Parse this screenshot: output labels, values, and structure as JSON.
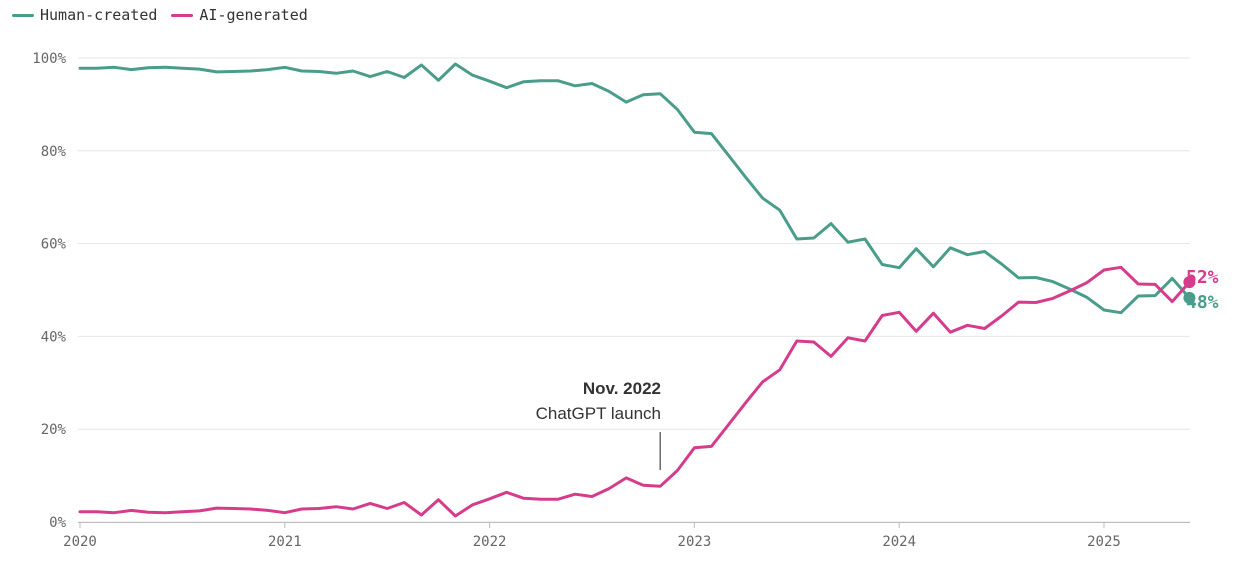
{
  "legend": {
    "human_label": "Human-created",
    "ai_label": "AI-generated"
  },
  "colors": {
    "human": "#4a9d8b",
    "ai": "#d63c8c",
    "grid": "#e6e6e6",
    "axis": "#bbbbbb"
  },
  "annotation": {
    "line1": "Nov. 2022",
    "line2": "ChatGPT launch",
    "x": 2022.833
  },
  "end_labels": {
    "ai": "52%",
    "human": "48%"
  },
  "chart_data": {
    "type": "line",
    "xlim": [
      2020,
      2025.42
    ],
    "ylim": [
      0,
      100
    ],
    "x_ticks": [
      {
        "value": 2020,
        "label": "2020"
      },
      {
        "value": 2021,
        "label": "2021"
      },
      {
        "value": 2022,
        "label": "2022"
      },
      {
        "value": 2023,
        "label": "2023"
      },
      {
        "value": 2024,
        "label": "2024"
      },
      {
        "value": 2025,
        "label": "2025"
      }
    ],
    "y_ticks": [
      {
        "value": 0,
        "label": "0%"
      },
      {
        "value": 20,
        "label": "20%"
      },
      {
        "value": 40,
        "label": "40%"
      },
      {
        "value": 60,
        "label": "60%"
      },
      {
        "value": 80,
        "label": "80%"
      },
      {
        "value": 100,
        "label": "100%"
      }
    ],
    "grid": "horizontal",
    "legend_position": "top-left",
    "series": [
      {
        "name": "Human-created",
        "color": "#4a9d8b",
        "points": [
          [
            2020.0,
            97.8
          ],
          [
            2020.083,
            97.8
          ],
          [
            2020.167,
            98.0
          ],
          [
            2020.25,
            97.5
          ],
          [
            2020.333,
            97.9
          ],
          [
            2020.417,
            98.0
          ],
          [
            2020.5,
            97.8
          ],
          [
            2020.583,
            97.6
          ],
          [
            2020.667,
            97.0
          ],
          [
            2020.75,
            97.1
          ],
          [
            2020.833,
            97.2
          ],
          [
            2020.917,
            97.5
          ],
          [
            2021.0,
            98.0
          ],
          [
            2021.083,
            97.2
          ],
          [
            2021.167,
            97.1
          ],
          [
            2021.25,
            96.7
          ],
          [
            2021.333,
            97.2
          ],
          [
            2021.417,
            96.0
          ],
          [
            2021.5,
            97.1
          ],
          [
            2021.583,
            95.8
          ],
          [
            2021.667,
            98.5
          ],
          [
            2021.75,
            95.2
          ],
          [
            2021.833,
            98.7
          ],
          [
            2021.917,
            96.3
          ],
          [
            2022.0,
            95.0
          ],
          [
            2022.083,
            93.6
          ],
          [
            2022.167,
            94.9
          ],
          [
            2022.25,
            95.1
          ],
          [
            2022.333,
            95.1
          ],
          [
            2022.417,
            94.0
          ],
          [
            2022.5,
            94.5
          ],
          [
            2022.583,
            92.8
          ],
          [
            2022.667,
            90.5
          ],
          [
            2022.75,
            92.1
          ],
          [
            2022.833,
            92.3
          ],
          [
            2022.917,
            88.9
          ],
          [
            2023.0,
            84.0
          ],
          [
            2023.083,
            83.7
          ],
          [
            2023.167,
            79.0
          ],
          [
            2023.25,
            74.3
          ],
          [
            2023.333,
            69.8
          ],
          [
            2023.417,
            67.2
          ],
          [
            2023.5,
            61.0
          ],
          [
            2023.583,
            61.2
          ],
          [
            2023.667,
            64.3
          ],
          [
            2023.75,
            60.3
          ],
          [
            2023.833,
            61.0
          ],
          [
            2023.917,
            55.5
          ],
          [
            2024.0,
            54.8
          ],
          [
            2024.083,
            58.9
          ],
          [
            2024.167,
            55.0
          ],
          [
            2024.25,
            59.1
          ],
          [
            2024.333,
            57.6
          ],
          [
            2024.417,
            58.3
          ],
          [
            2024.5,
            55.6
          ],
          [
            2024.583,
            52.6
          ],
          [
            2024.667,
            52.7
          ],
          [
            2024.75,
            51.8
          ],
          [
            2024.833,
            50.2
          ],
          [
            2024.917,
            48.4
          ],
          [
            2025.0,
            45.7
          ],
          [
            2025.083,
            45.1
          ],
          [
            2025.167,
            48.7
          ],
          [
            2025.25,
            48.8
          ],
          [
            2025.333,
            52.5
          ],
          [
            2025.417,
            48.3
          ]
        ]
      },
      {
        "name": "AI-generated",
        "color": "#d63c8c",
        "points": [
          [
            2020.0,
            2.2
          ],
          [
            2020.083,
            2.2
          ],
          [
            2020.167,
            2.0
          ],
          [
            2020.25,
            2.5
          ],
          [
            2020.333,
            2.1
          ],
          [
            2020.417,
            2.0
          ],
          [
            2020.5,
            2.2
          ],
          [
            2020.583,
            2.4
          ],
          [
            2020.667,
            3.0
          ],
          [
            2020.75,
            2.9
          ],
          [
            2020.833,
            2.8
          ],
          [
            2020.917,
            2.5
          ],
          [
            2021.0,
            2.0
          ],
          [
            2021.083,
            2.8
          ],
          [
            2021.167,
            2.9
          ],
          [
            2021.25,
            3.3
          ],
          [
            2021.333,
            2.8
          ],
          [
            2021.417,
            4.0
          ],
          [
            2021.5,
            2.9
          ],
          [
            2021.583,
            4.2
          ],
          [
            2021.667,
            1.5
          ],
          [
            2021.75,
            4.8
          ],
          [
            2021.833,
            1.3
          ],
          [
            2021.917,
            3.7
          ],
          [
            2022.0,
            5.0
          ],
          [
            2022.083,
            6.4
          ],
          [
            2022.167,
            5.1
          ],
          [
            2022.25,
            4.9
          ],
          [
            2022.333,
            4.9
          ],
          [
            2022.417,
            6.0
          ],
          [
            2022.5,
            5.5
          ],
          [
            2022.583,
            7.2
          ],
          [
            2022.667,
            9.5
          ],
          [
            2022.75,
            7.9
          ],
          [
            2022.833,
            7.7
          ],
          [
            2022.917,
            11.1
          ],
          [
            2023.0,
            16.0
          ],
          [
            2023.083,
            16.3
          ],
          [
            2023.167,
            21.0
          ],
          [
            2023.25,
            25.7
          ],
          [
            2023.333,
            30.2
          ],
          [
            2023.417,
            32.8
          ],
          [
            2023.5,
            39.0
          ],
          [
            2023.583,
            38.8
          ],
          [
            2023.667,
            35.7
          ],
          [
            2023.75,
            39.7
          ],
          [
            2023.833,
            39.0
          ],
          [
            2023.917,
            44.5
          ],
          [
            2024.0,
            45.2
          ],
          [
            2024.083,
            41.1
          ],
          [
            2024.167,
            45.0
          ],
          [
            2024.25,
            40.9
          ],
          [
            2024.333,
            42.4
          ],
          [
            2024.417,
            41.7
          ],
          [
            2024.5,
            44.4
          ],
          [
            2024.583,
            47.4
          ],
          [
            2024.667,
            47.3
          ],
          [
            2024.75,
            48.2
          ],
          [
            2024.833,
            49.8
          ],
          [
            2024.917,
            51.6
          ],
          [
            2025.0,
            54.3
          ],
          [
            2025.083,
            54.9
          ],
          [
            2025.167,
            51.3
          ],
          [
            2025.25,
            51.2
          ],
          [
            2025.333,
            47.5
          ],
          [
            2025.417,
            51.7
          ]
        ]
      }
    ]
  }
}
